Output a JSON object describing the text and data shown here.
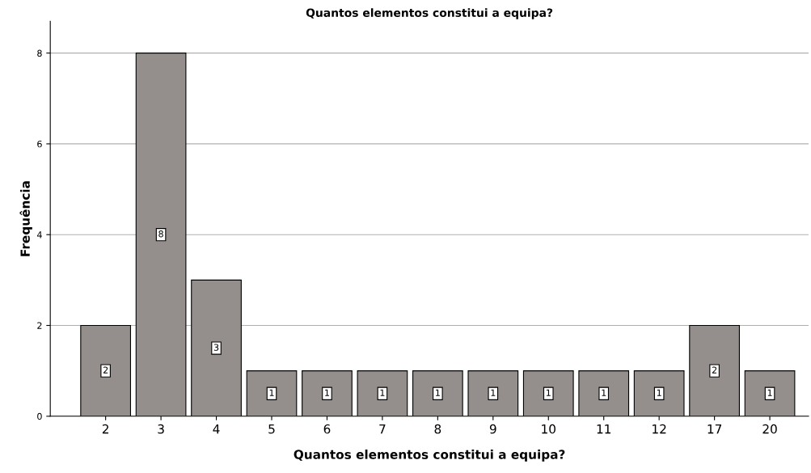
{
  "chart_data": {
    "type": "bar",
    "title": "Quantos elementos constitui a equipa?",
    "xlabel": "Quantos elementos constitui a equipa?",
    "ylabel": "Frequência",
    "categories": [
      "2",
      "3",
      "4",
      "5",
      "6",
      "7",
      "8",
      "9",
      "10",
      "11",
      "12",
      "17",
      "20"
    ],
    "values": [
      2,
      8,
      3,
      1,
      1,
      1,
      1,
      1,
      1,
      1,
      1,
      2,
      1
    ],
    "color": "#948f8c",
    "ylim": [
      0,
      8.7
    ],
    "yticks": [
      0,
      2,
      4,
      6,
      8
    ],
    "grid": "y",
    "data_labels": true
  }
}
